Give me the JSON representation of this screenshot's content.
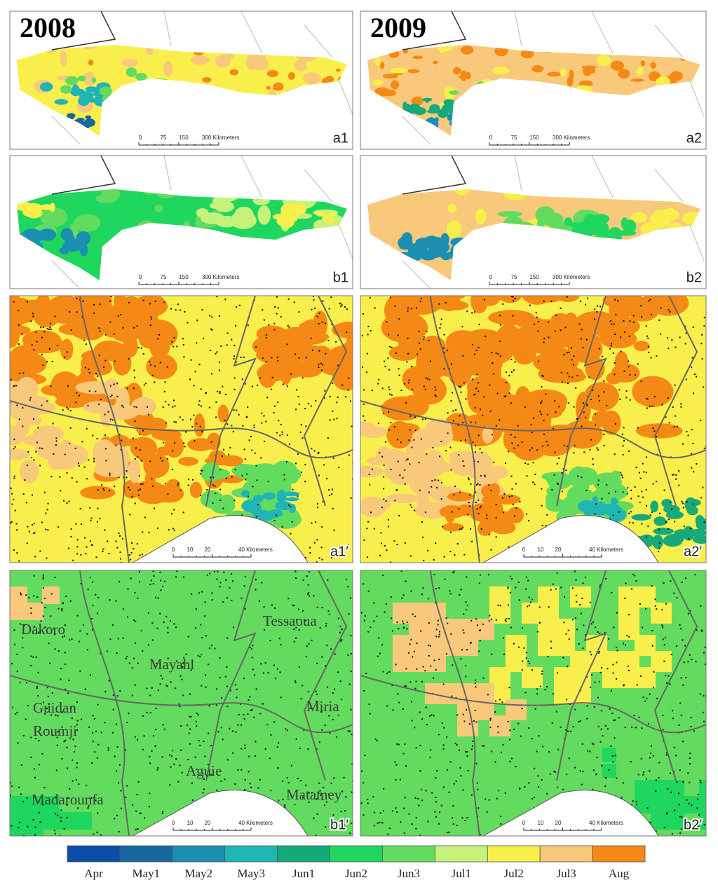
{
  "years": [
    "2008",
    "2009"
  ],
  "panels": [
    {
      "label": "a1",
      "scale_bar": [
        "0",
        "75",
        "150",
        "300 Kilometers"
      ]
    },
    {
      "label": "a2",
      "scale_bar": [
        "0",
        "75",
        "150",
        "300 Kilometers"
      ]
    },
    {
      "label": "b1",
      "scale_bar": [
        "0",
        "75",
        "150",
        "300 Kilometers"
      ]
    },
    {
      "label": "b2",
      "scale_bar": [
        "0",
        "75",
        "150",
        "300 Kilometers"
      ]
    },
    {
      "label": "a1′",
      "scale_bar": [
        "0",
        "10",
        "20",
        "40 Kilometers"
      ]
    },
    {
      "label": "a2′",
      "scale_bar": [
        "0",
        "10",
        "20",
        "40 Kilometers"
      ]
    },
    {
      "label": "b1′",
      "scale_bar": [
        "0",
        "10",
        "20",
        "40 Kilometers"
      ],
      "places": [
        "Dakoro",
        "Mayahi",
        "Tessaoua",
        "Guidan",
        "Roumji",
        "Miria",
        "Aguie",
        "Madarounfa",
        "Matamey"
      ]
    },
    {
      "label": "b2′",
      "scale_bar": [
        "0",
        "10",
        "20",
        "40 Kilometers"
      ]
    }
  ],
  "legend": {
    "items": [
      {
        "label": "Apr",
        "color": "#0b4ea8"
      },
      {
        "label": "May1",
        "color": "#16699e"
      },
      {
        "label": "May2",
        "color": "#1a8fb2"
      },
      {
        "label": "May3",
        "color": "#1fb5b4"
      },
      {
        "label": "Jun1",
        "color": "#16a97a"
      },
      {
        "label": "Jun2",
        "color": "#1fd65e"
      },
      {
        "label": "Jun3",
        "color": "#62db5e"
      },
      {
        "label": "Jul1",
        "color": "#c6f27c"
      },
      {
        "label": "Jul2",
        "color": "#f9ef4c"
      },
      {
        "label": "Jul3",
        "color": "#f8c97a"
      },
      {
        "label": "Aug",
        "color": "#f58916"
      }
    ]
  }
}
